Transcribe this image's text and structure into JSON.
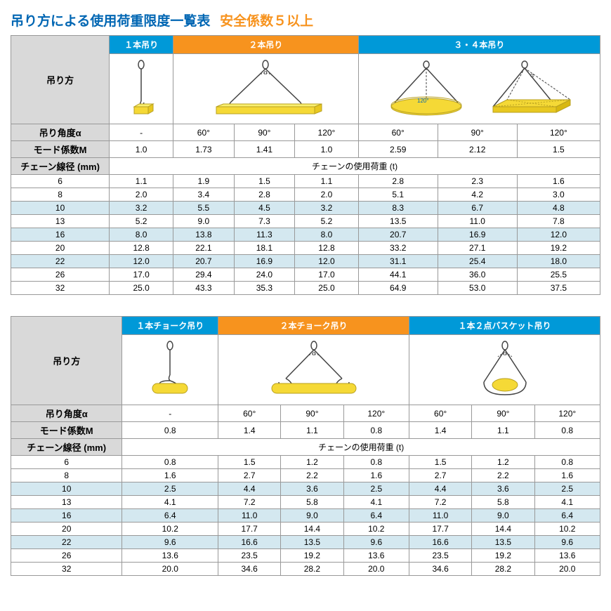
{
  "title_main": "吊り方による使用荷重限度一覧表",
  "title_sub": "安全係数５以上",
  "table1": {
    "headers": [
      "１本吊り",
      "２本吊り",
      "３・４本吊り"
    ],
    "row_method_label": "吊り方",
    "row_angle_label": "吊り角度α",
    "row_modefactor_label": "モード係数M",
    "row_chaindia_label": "チェーン線径 (mm)",
    "row_chainload_label": "チェーンの使用荷重 (t)",
    "angles": [
      "-",
      "60°",
      "90°",
      "120°",
      "60°",
      "90°",
      "120°"
    ],
    "mode_factors": [
      "1.0",
      "1.73",
      "1.41",
      "1.0",
      "2.59",
      "2.12",
      "1.5"
    ],
    "chain_dias": [
      "6",
      "8",
      "10",
      "13",
      "16",
      "20",
      "22",
      "26",
      "32"
    ],
    "data": [
      [
        "1.1",
        "1.9",
        "1.5",
        "1.1",
        "2.8",
        "2.3",
        "1.6"
      ],
      [
        "2.0",
        "3.4",
        "2.8",
        "2.0",
        "5.1",
        "4.2",
        "3.0"
      ],
      [
        "3.2",
        "5.5",
        "4.5",
        "3.2",
        "8.3",
        "6.7",
        "4.8"
      ],
      [
        "5.2",
        "9.0",
        "7.3",
        "5.2",
        "13.5",
        "11.0",
        "7.8"
      ],
      [
        "8.0",
        "13.8",
        "11.3",
        "8.0",
        "20.7",
        "16.9",
        "12.0"
      ],
      [
        "12.8",
        "22.1",
        "18.1",
        "12.8",
        "33.2",
        "27.1",
        "19.2"
      ],
      [
        "12.0",
        "20.7",
        "16.9",
        "12.0",
        "31.1",
        "25.4",
        "18.0"
      ],
      [
        "17.0",
        "29.4",
        "24.0",
        "17.0",
        "44.1",
        "36.0",
        "25.5"
      ],
      [
        "25.0",
        "43.3",
        "35.3",
        "25.0",
        "64.9",
        "53.0",
        "37.5"
      ]
    ]
  },
  "table2": {
    "headers": [
      "１本チョーク吊り",
      "２本チョーク吊り",
      "１本２点バスケット吊り"
    ],
    "row_method_label": "吊り方",
    "row_angle_label": "吊り角度α",
    "row_modefactor_label": "モード係数M",
    "row_chaindia_label": "チェーン線径 (mm)",
    "row_chainload_label": "チェーンの使用荷重 (t)",
    "angles": [
      "-",
      "60°",
      "90°",
      "120°",
      "60°",
      "90°",
      "120°"
    ],
    "mode_factors": [
      "0.8",
      "1.4",
      "1.1",
      "0.8",
      "1.4",
      "1.1",
      "0.8"
    ],
    "chain_dias": [
      "6",
      "8",
      "10",
      "13",
      "16",
      "20",
      "22",
      "26",
      "32"
    ],
    "data": [
      [
        "0.8",
        "1.5",
        "1.2",
        "0.8",
        "1.5",
        "1.2",
        "0.8"
      ],
      [
        "1.6",
        "2.7",
        "2.2",
        "1.6",
        "2.7",
        "2.2",
        "1.6"
      ],
      [
        "2.5",
        "4.4",
        "3.6",
        "2.5",
        "4.4",
        "3.6",
        "2.5"
      ],
      [
        "4.1",
        "7.2",
        "5.8",
        "4.1",
        "7.2",
        "5.8",
        "4.1"
      ],
      [
        "6.4",
        "11.0",
        "9.0",
        "6.4",
        "11.0",
        "9.0",
        "6.4"
      ],
      [
        "10.2",
        "17.7",
        "14.4",
        "10.2",
        "17.7",
        "14.4",
        "10.2"
      ],
      [
        "9.6",
        "16.6",
        "13.5",
        "9.6",
        "16.6",
        "13.5",
        "9.6"
      ],
      [
        "13.6",
        "23.5",
        "19.2",
        "13.6",
        "23.5",
        "19.2",
        "13.6"
      ],
      [
        "20.0",
        "34.6",
        "28.2",
        "20.0",
        "34.6",
        "28.2",
        "20.0"
      ]
    ]
  },
  "highlight_rows": [
    2,
    4,
    6
  ]
}
